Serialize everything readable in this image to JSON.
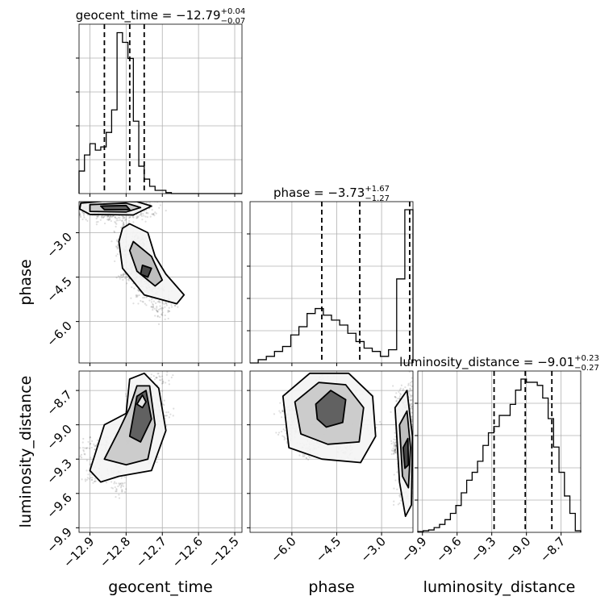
{
  "chart_data": {
    "type": "corner",
    "parameters": [
      {
        "key": "geocent_time",
        "axis_label": "geocent_time",
        "title": {
          "prefix": "geocent_time = ",
          "median": "−12.79",
          "plus": "+0.04",
          "minus": "−0.07"
        },
        "range": [
          -12.93,
          -12.48
        ],
        "ticks": [
          -12.9,
          -12.8,
          -12.7,
          -12.6,
          -12.5
        ],
        "tick_labels": [
          "−12.9",
          "−12.8",
          "−12.7",
          "−12.6",
          "−12.5"
        ],
        "quantile_lines": [
          -12.86,
          -12.79,
          -12.75
        ],
        "hist_bins": [
          -12.93,
          -12.915,
          -12.9,
          -12.885,
          -12.87,
          -12.855,
          -12.84,
          -12.825,
          -12.81,
          -12.795,
          -12.78,
          -12.765,
          -12.75,
          -12.735,
          -12.72,
          -12.705,
          -12.69,
          -12.675,
          -12.66,
          -12.645,
          -12.63,
          -12.615,
          -12.6,
          -12.585,
          -12.57,
          -12.555,
          -12.54,
          -12.525,
          -12.51,
          -12.495,
          -12.48
        ],
        "hist_counts": [
          0.14,
          0.24,
          0.31,
          0.27,
          0.29,
          0.38,
          0.52,
          1.0,
          0.94,
          0.84,
          0.45,
          0.17,
          0.09,
          0.045,
          0.02,
          0.02,
          0.006,
          0.0,
          0.0,
          0.0,
          0.0,
          0.0,
          0.0,
          0.0,
          0.0,
          0.0,
          0.0,
          0.0,
          0.0,
          0.0
        ]
      },
      {
        "key": "phase",
        "axis_label": "phase",
        "title": {
          "prefix": "phase = ",
          "median": "−3.73",
          "plus": "+1.67",
          "minus": "−1.27"
        },
        "range": [
          -7.4,
          -1.95
        ],
        "ticks": [
          -6.0,
          -4.5,
          -3.0
        ],
        "tick_labels": [
          "−6.0",
          "−4.5",
          "−3.0"
        ],
        "quantile_lines": [
          -5.0,
          -3.73,
          -2.06
        ],
        "hist_bins": [
          -7.4,
          -7.127,
          -6.855,
          -6.582,
          -6.31,
          -6.037,
          -5.765,
          -5.492,
          -5.22,
          -4.947,
          -4.675,
          -4.402,
          -4.13,
          -3.857,
          -3.585,
          -3.312,
          -3.04,
          -2.767,
          -2.495,
          -2.222,
          -1.95
        ],
        "hist_counts": [
          0.0,
          0.02,
          0.04,
          0.07,
          0.1,
          0.17,
          0.22,
          0.3,
          0.33,
          0.29,
          0.26,
          0.23,
          0.18,
          0.13,
          0.09,
          0.07,
          0.04,
          0.08,
          0.51,
          0.93
        ]
      },
      {
        "key": "luminosity_distance",
        "axis_label": "luminosity_distance",
        "title": {
          "prefix": "luminosity_distance = ",
          "median": "−9.01",
          "plus": "+0.23",
          "minus": "−0.27"
        },
        "range": [
          -9.94,
          -8.53
        ],
        "ticks": [
          -9.9,
          -9.6,
          -9.3,
          -9.0,
          -8.7
        ],
        "tick_labels": [
          "−9.9",
          "−9.6",
          "−9.3",
          "−9.0",
          "−8.7"
        ],
        "quantile_lines": [
          -9.28,
          -9.01,
          -8.78
        ],
        "hist_bins": [
          -9.94,
          -9.893,
          -9.846,
          -9.799,
          -9.752,
          -9.705,
          -9.658,
          -9.611,
          -9.564,
          -9.517,
          -9.47,
          -9.423,
          -9.376,
          -9.329,
          -9.282,
          -9.235,
          -9.188,
          -9.141,
          -9.094,
          -9.047,
          -9.0,
          -8.953,
          -8.906,
          -8.859,
          -8.812,
          -8.765,
          -8.718,
          -8.671,
          -8.624,
          -8.577,
          -8.53
        ],
        "hist_counts": [
          0.005,
          0.01,
          0.015,
          0.03,
          0.05,
          0.08,
          0.12,
          0.17,
          0.25,
          0.33,
          0.38,
          0.45,
          0.55,
          0.63,
          0.67,
          0.74,
          0.74,
          0.81,
          0.9,
          0.97,
          0.95,
          0.95,
          0.93,
          0.85,
          0.72,
          0.54,
          0.38,
          0.23,
          0.12,
          0.01
        ]
      }
    ],
    "hist2d": [
      {
        "x": "geocent_time",
        "y": "phase",
        "clusters": [
          {
            "path": [
              [
                -12.925,
                -2.1
              ],
              [
                -12.88,
                -2.0
              ],
              [
                -12.8,
                -2.0
              ],
              [
                -12.74,
                -2.1
              ],
              [
                -12.76,
                -2.3
              ],
              [
                -12.85,
                -2.3
              ],
              [
                -12.925,
                -2.25
              ]
            ]
          },
          {
            "path": [
              [
                -12.8,
                -2.8
              ],
              [
                -12.76,
                -3.3
              ],
              [
                -12.73,
                -4.3
              ],
              [
                -12.69,
                -5.3
              ],
              [
                -12.71,
                -5.6
              ],
              [
                -12.76,
                -5.0
              ],
              [
                -12.8,
                -4.4
              ],
              [
                -12.81,
                -3.5
              ]
            ]
          }
        ],
        "contours": [
          [
            [
              -12.925,
              -2.0
            ],
            [
              -12.86,
              -1.93
            ],
            [
              -12.77,
              -1.95
            ],
            [
              -12.73,
              -2.1
            ],
            [
              -12.78,
              -2.4
            ],
            [
              -12.9,
              -2.38
            ],
            [
              -12.928,
              -2.2
            ]
          ],
          [
            [
              -12.9,
              -2.05
            ],
            [
              -12.8,
              -2.0
            ],
            [
              -12.76,
              -2.15
            ],
            [
              -12.8,
              -2.3
            ],
            [
              -12.9,
              -2.28
            ]
          ],
          [
            [
              -12.87,
              -2.1
            ],
            [
              -12.8,
              -2.08
            ],
            [
              -12.79,
              -2.22
            ],
            [
              -12.86,
              -2.22
            ]
          ],
          [
            [
              -12.79,
              -2.7
            ],
            [
              -12.74,
              -3.0
            ],
            [
              -12.72,
              -3.8
            ],
            [
              -12.69,
              -4.4
            ],
            [
              -12.64,
              -5.1
            ],
            [
              -12.66,
              -5.4
            ],
            [
              -12.75,
              -5.1
            ],
            [
              -12.81,
              -4.2
            ],
            [
              -12.82,
              -3.3
            ],
            [
              -12.81,
              -2.85
            ]
          ],
          [
            [
              -12.78,
              -3.3
            ],
            [
              -12.73,
              -3.8
            ],
            [
              -12.7,
              -4.6
            ],
            [
              -12.72,
              -4.8
            ],
            [
              -12.77,
              -4.3
            ],
            [
              -12.79,
              -3.6
            ]
          ],
          [
            [
              -12.755,
              -4.1
            ],
            [
              -12.73,
              -4.2
            ],
            [
              -12.74,
              -4.5
            ],
            [
              -12.76,
              -4.4
            ]
          ]
        ]
      },
      {
        "x": "geocent_time",
        "y": "luminosity_distance",
        "clusters": [
          {
            "path": [
              [
                -12.9,
                -9.2
              ],
              [
                -12.8,
                -9.1
              ],
              [
                -12.76,
                -8.7
              ],
              [
                -12.71,
                -8.65
              ],
              [
                -12.7,
                -8.9
              ],
              [
                -12.74,
                -9.3
              ],
              [
                -12.82,
                -9.5
              ],
              [
                -12.88,
                -9.4
              ]
            ]
          }
        ],
        "contours": [
          [
            [
              -12.9,
              -9.4
            ],
            [
              -12.86,
              -9.0
            ],
            [
              -12.8,
              -8.9
            ],
            [
              -12.79,
              -8.6
            ],
            [
              -12.75,
              -8.55
            ],
            [
              -12.71,
              -8.68
            ],
            [
              -12.69,
              -9.05
            ],
            [
              -12.73,
              -9.4
            ],
            [
              -12.82,
              -9.45
            ],
            [
              -12.87,
              -9.5
            ]
          ],
          [
            [
              -12.86,
              -9.3
            ],
            [
              -12.82,
              -9.05
            ],
            [
              -12.79,
              -8.85
            ],
            [
              -12.77,
              -8.66
            ],
            [
              -12.735,
              -8.66
            ],
            [
              -12.72,
              -9.0
            ],
            [
              -12.74,
              -9.3
            ],
            [
              -12.8,
              -9.35
            ]
          ],
          [
            [
              -12.79,
              -9.1
            ],
            [
              -12.77,
              -8.75
            ],
            [
              -12.745,
              -8.7
            ],
            [
              -12.73,
              -8.95
            ],
            [
              -12.76,
              -9.15
            ]
          ],
          [
            [
              -12.77,
              -8.82
            ],
            [
              -12.755,
              -8.74
            ],
            [
              -12.745,
              -8.8
            ],
            [
              -12.755,
              -8.85
            ]
          ]
        ]
      },
      {
        "x": "phase",
        "y": "luminosity_distance",
        "clusters": [
          {
            "path": [
              [
                -6.0,
                -8.9
              ],
              [
                -5.0,
                -8.65
              ],
              [
                -4.0,
                -8.8
              ],
              [
                -3.6,
                -9.0
              ],
              [
                -4.2,
                -9.2
              ],
              [
                -5.4,
                -9.2
              ],
              [
                -6.0,
                -9.05
              ]
            ]
          },
          {
            "path": [
              [
                -2.3,
                -8.8
              ],
              [
                -2.0,
                -8.75
              ],
              [
                -1.98,
                -9.5
              ],
              [
                -2.2,
                -9.6
              ],
              [
                -2.35,
                -9.2
              ]
            ]
          }
        ],
        "contours": [
          [
            [
              -6.3,
              -8.75
            ],
            [
              -5.4,
              -8.55
            ],
            [
              -4.1,
              -8.55
            ],
            [
              -3.3,
              -8.75
            ],
            [
              -3.2,
              -9.1
            ],
            [
              -3.7,
              -9.33
            ],
            [
              -5.0,
              -9.3
            ],
            [
              -6.1,
              -9.2
            ]
          ],
          [
            [
              -5.9,
              -8.8
            ],
            [
              -5.1,
              -8.63
            ],
            [
              -4.2,
              -8.65
            ],
            [
              -3.6,
              -8.85
            ],
            [
              -3.75,
              -9.15
            ],
            [
              -4.8,
              -9.17
            ],
            [
              -5.7,
              -9.08
            ]
          ],
          [
            [
              -5.2,
              -8.82
            ],
            [
              -4.7,
              -8.7
            ],
            [
              -4.2,
              -8.78
            ],
            [
              -4.3,
              -8.98
            ],
            [
              -4.85,
              -9.02
            ],
            [
              -5.15,
              -8.95
            ]
          ],
          [
            [
              -2.55,
              -8.85
            ],
            [
              -2.15,
              -8.7
            ],
            [
              -1.97,
              -9.1
            ],
            [
              -2.0,
              -9.7
            ],
            [
              -2.2,
              -9.8
            ],
            [
              -2.4,
              -9.5
            ]
          ],
          [
            [
              -2.4,
              -9.0
            ],
            [
              -2.15,
              -8.88
            ],
            [
              -2.03,
              -9.2
            ],
            [
              -2.1,
              -9.55
            ],
            [
              -2.3,
              -9.45
            ]
          ],
          [
            [
              -2.28,
              -9.2
            ],
            [
              -2.12,
              -9.12
            ],
            [
              -2.1,
              -9.35
            ],
            [
              -2.22,
              -9.38
            ]
          ]
        ]
      }
    ]
  }
}
